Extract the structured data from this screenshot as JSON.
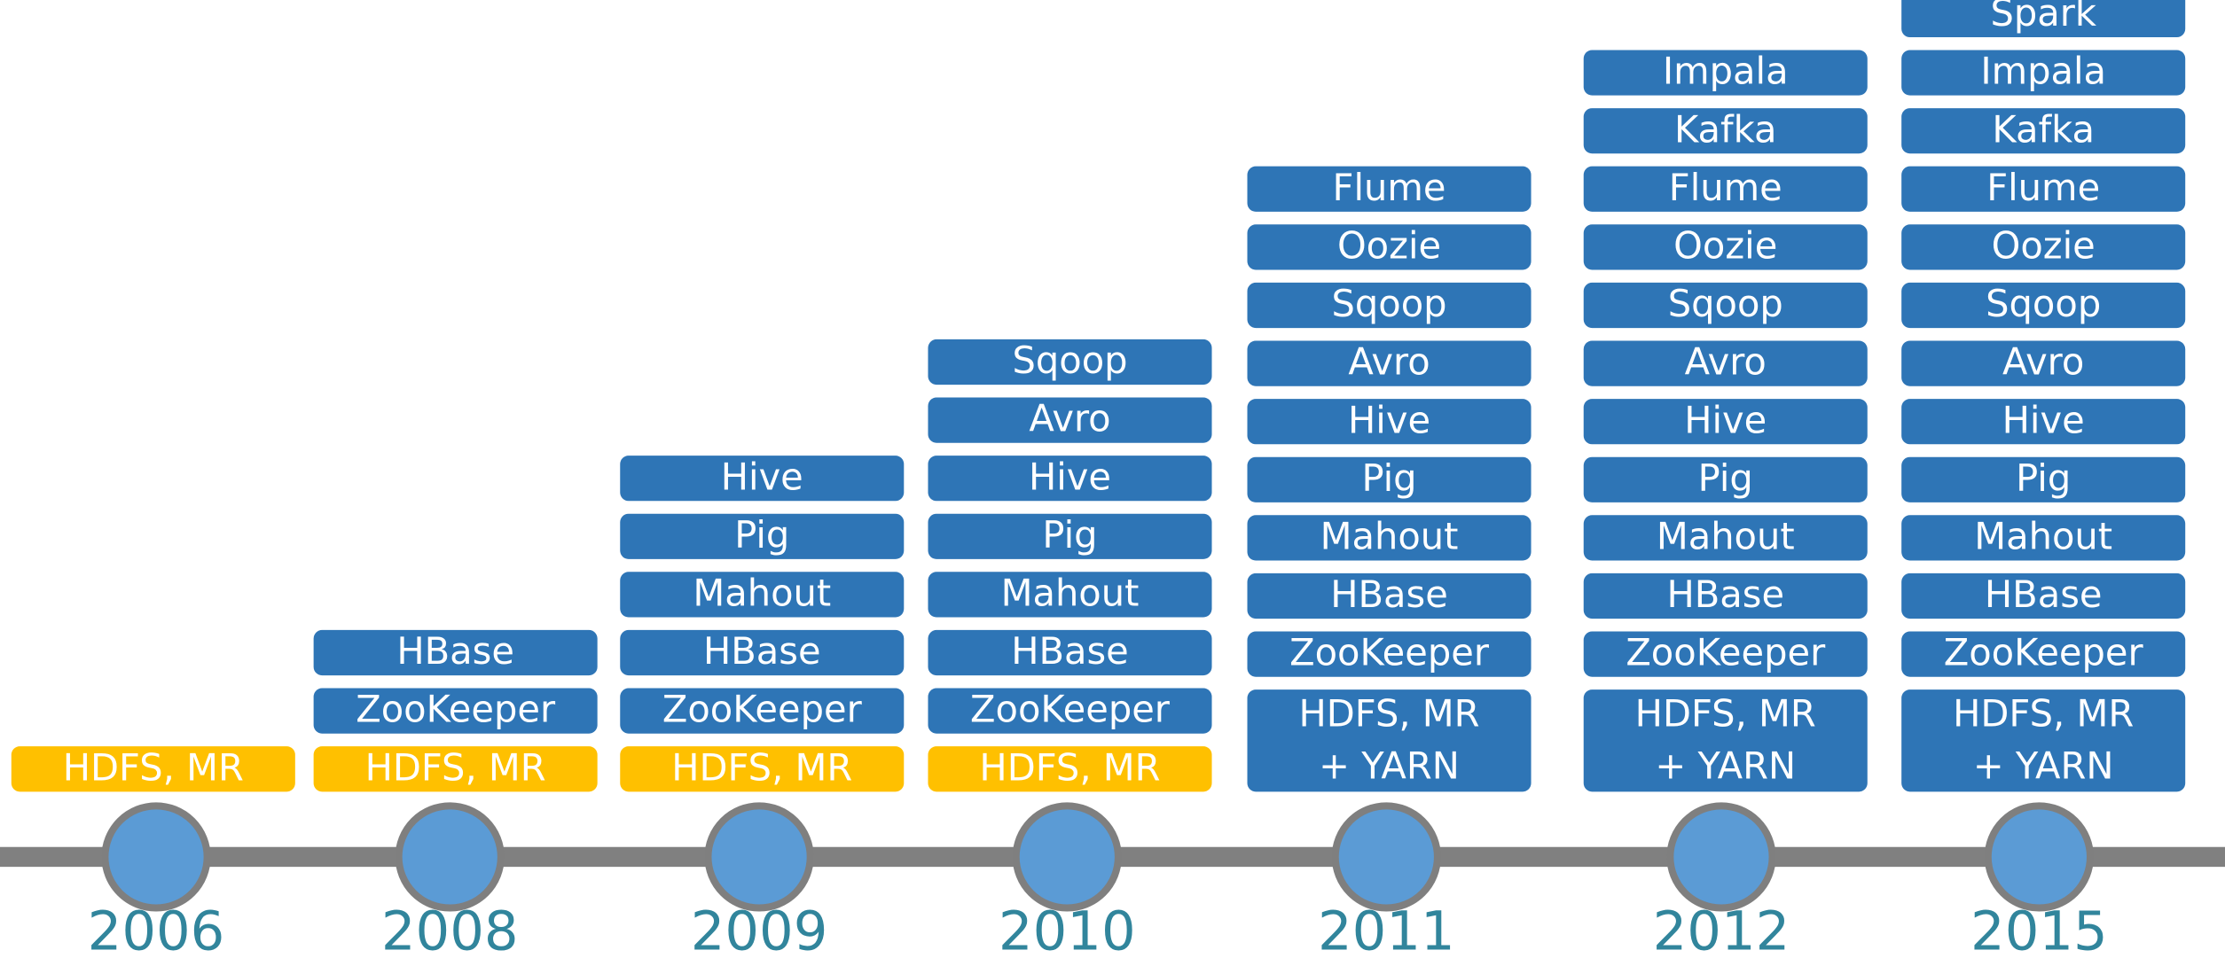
{
  "timeline": {
    "columns": [
      {
        "year": "2006",
        "base_color": "#ffc000",
        "items": [
          "HDFS, MR"
        ]
      },
      {
        "year": "2008",
        "base_color": "#ffc000",
        "items": [
          "HDFS, MR",
          "ZooKeeper",
          "HBase"
        ]
      },
      {
        "year": "2009",
        "base_color": "#ffc000",
        "items": [
          "HDFS, MR",
          "ZooKeeper",
          "HBase",
          "Mahout",
          "Pig",
          "Hive"
        ]
      },
      {
        "year": "2010",
        "base_color": "#ffc000",
        "items": [
          "HDFS, MR",
          "ZooKeeper",
          "HBase",
          "Mahout",
          "Pig",
          "Hive",
          "Avro",
          "Sqoop"
        ]
      },
      {
        "year": "2011",
        "base_color": "#2e75b6",
        "items": [
          [
            "HDFS, MR",
            "+ YARN"
          ],
          "ZooKeeper",
          "HBase",
          "Mahout",
          "Pig",
          "Hive",
          "Avro",
          "Sqoop",
          "Oozie",
          "Flume"
        ]
      },
      {
        "year": "2012",
        "base_color": "#2e75b6",
        "items": [
          [
            "HDFS, MR",
            "+ YARN"
          ],
          "ZooKeeper",
          "HBase",
          "Mahout",
          "Pig",
          "Hive",
          "Avro",
          "Sqoop",
          "Oozie",
          "Flume",
          "Kafka",
          "Impala"
        ]
      },
      {
        "year": "2015",
        "base_color": "#2e75b6",
        "items": [
          [
            "HDFS, MR",
            "+ YARN"
          ],
          "ZooKeeper",
          "HBase",
          "Mahout",
          "Pig",
          "Hive",
          "Avro",
          "Sqoop",
          "Oozie",
          "Flume",
          "Kafka",
          "Impala",
          "Spark"
        ]
      }
    ]
  }
}
